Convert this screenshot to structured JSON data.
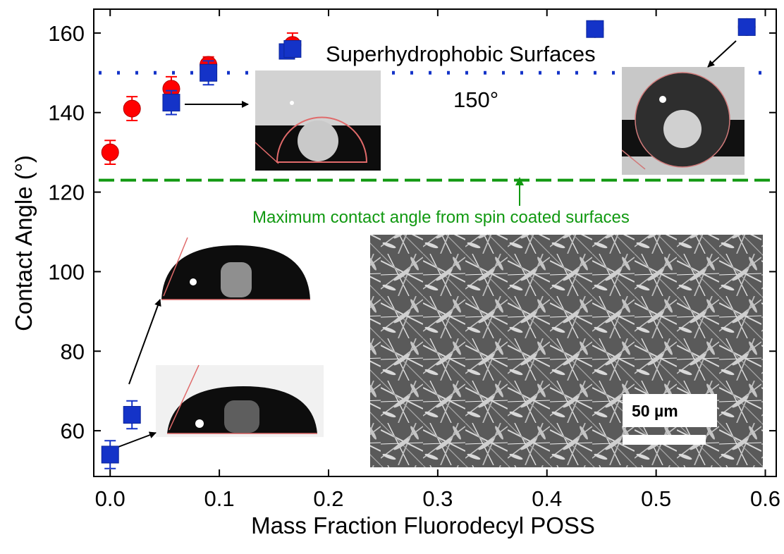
{
  "chart_data": {
    "type": "scatter",
    "xlabel": "Mass Fraction Fluorodecyl POSS",
    "ylabel": "Contact Angle (°)",
    "xlim": [
      -0.015,
      0.61
    ],
    "ylim": [
      48.5,
      166
    ],
    "x_ticks": [
      "0.0",
      "0.1",
      "0.2",
      "0.3",
      "0.4",
      "0.5",
      "0.6"
    ],
    "x_tick_values": [
      0.0,
      0.1,
      0.2,
      0.3,
      0.4,
      0.5,
      0.6
    ],
    "y_ticks": [
      "60",
      "80",
      "100",
      "120",
      "140",
      "160"
    ],
    "y_tick_values": [
      60,
      80,
      100,
      120,
      140,
      160
    ],
    "grid": false,
    "series": [
      {
        "marker": "circle",
        "color": "#ff0000",
        "points": [
          {
            "x": 0.0,
            "y": 130,
            "err": 3
          },
          {
            "x": 0.02,
            "y": 141,
            "err": 3
          },
          {
            "x": 0.056,
            "y": 146,
            "err": 3
          },
          {
            "x": 0.09,
            "y": 152,
            "err": 2
          },
          {
            "x": 0.167,
            "y": 157,
            "err": 3
          },
          {
            "x": 0.444,
            "y": 161,
            "err": 1
          },
          {
            "x": 0.583,
            "y": 161.5,
            "err": 1
          }
        ]
      },
      {
        "marker": "square",
        "color": "#1433c8",
        "points": [
          {
            "x": 0.0,
            "y": 54,
            "err": 3.5
          },
          {
            "x": 0.02,
            "y": 64,
            "err": 3.5
          },
          {
            "x": 0.056,
            "y": 142.5,
            "err": 3
          },
          {
            "x": 0.09,
            "y": 150,
            "err": 3
          },
          {
            "x": 0.167,
            "y": 156,
            "err": 1
          },
          {
            "x": 0.444,
            "y": 161,
            "err": 1
          },
          {
            "x": 0.583,
            "y": 161.5,
            "err": 1
          }
        ]
      }
    ],
    "reference_lines": [
      {
        "y": 150,
        "style": "dotted",
        "color": "#1433c8",
        "label": "150°"
      },
      {
        "y": 123,
        "style": "dashed",
        "color": "#119911",
        "label": "Maximum contact angle from spin coated surfaces"
      }
    ],
    "annotations": {
      "superhydrophobic": "Superhydrophobic Surfaces",
      "scale_bar": "50 µm"
    },
    "insets": [
      "droplet-image",
      "droplet-image",
      "droplet-image",
      "droplet-image",
      "sem-micrograph"
    ]
  }
}
